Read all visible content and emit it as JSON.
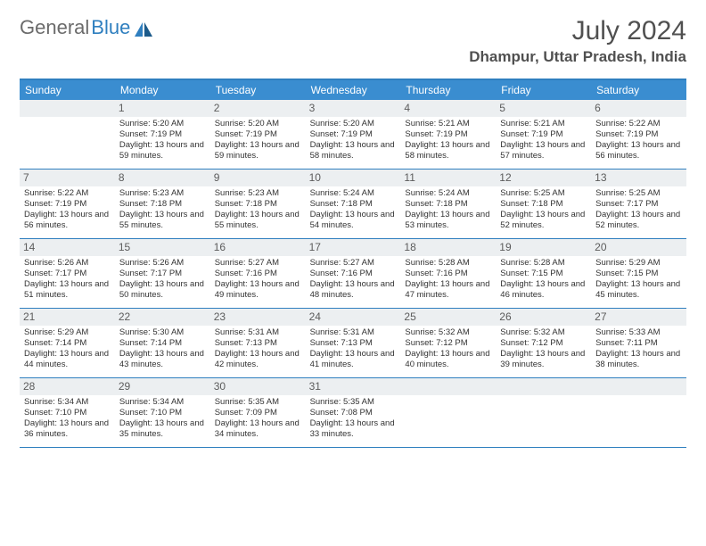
{
  "logo": {
    "part1": "General",
    "part2": "Blue"
  },
  "title": "July 2024",
  "subtitle": "Dhampur, Uttar Pradesh, India",
  "colors": {
    "header_bg": "#3a8dd0",
    "header_text": "#ffffff",
    "border": "#2f7fbf",
    "daynum_bg": "#eceff1",
    "daynum_text": "#5c5c5c",
    "body_text": "#333333",
    "logo_gray": "#6b6b6b",
    "logo_blue": "#2f7fbf"
  },
  "typography": {
    "title_fontsize": 30,
    "subtitle_fontsize": 17,
    "dayheader_fontsize": 12,
    "daynum_fontsize": 12,
    "cell_fontsize": 9.5
  },
  "day_names": [
    "Sunday",
    "Monday",
    "Tuesday",
    "Wednesday",
    "Thursday",
    "Friday",
    "Saturday"
  ],
  "weeks": [
    [
      null,
      {
        "n": "1",
        "sr": "5:20 AM",
        "ss": "7:19 PM",
        "dl": "13 hours and 59 minutes."
      },
      {
        "n": "2",
        "sr": "5:20 AM",
        "ss": "7:19 PM",
        "dl": "13 hours and 59 minutes."
      },
      {
        "n": "3",
        "sr": "5:20 AM",
        "ss": "7:19 PM",
        "dl": "13 hours and 58 minutes."
      },
      {
        "n": "4",
        "sr": "5:21 AM",
        "ss": "7:19 PM",
        "dl": "13 hours and 58 minutes."
      },
      {
        "n": "5",
        "sr": "5:21 AM",
        "ss": "7:19 PM",
        "dl": "13 hours and 57 minutes."
      },
      {
        "n": "6",
        "sr": "5:22 AM",
        "ss": "7:19 PM",
        "dl": "13 hours and 56 minutes."
      }
    ],
    [
      {
        "n": "7",
        "sr": "5:22 AM",
        "ss": "7:19 PM",
        "dl": "13 hours and 56 minutes."
      },
      {
        "n": "8",
        "sr": "5:23 AM",
        "ss": "7:18 PM",
        "dl": "13 hours and 55 minutes."
      },
      {
        "n": "9",
        "sr": "5:23 AM",
        "ss": "7:18 PM",
        "dl": "13 hours and 55 minutes."
      },
      {
        "n": "10",
        "sr": "5:24 AM",
        "ss": "7:18 PM",
        "dl": "13 hours and 54 minutes."
      },
      {
        "n": "11",
        "sr": "5:24 AM",
        "ss": "7:18 PM",
        "dl": "13 hours and 53 minutes."
      },
      {
        "n": "12",
        "sr": "5:25 AM",
        "ss": "7:18 PM",
        "dl": "13 hours and 52 minutes."
      },
      {
        "n": "13",
        "sr": "5:25 AM",
        "ss": "7:17 PM",
        "dl": "13 hours and 52 minutes."
      }
    ],
    [
      {
        "n": "14",
        "sr": "5:26 AM",
        "ss": "7:17 PM",
        "dl": "13 hours and 51 minutes."
      },
      {
        "n": "15",
        "sr": "5:26 AM",
        "ss": "7:17 PM",
        "dl": "13 hours and 50 minutes."
      },
      {
        "n": "16",
        "sr": "5:27 AM",
        "ss": "7:16 PM",
        "dl": "13 hours and 49 minutes."
      },
      {
        "n": "17",
        "sr": "5:27 AM",
        "ss": "7:16 PM",
        "dl": "13 hours and 48 minutes."
      },
      {
        "n": "18",
        "sr": "5:28 AM",
        "ss": "7:16 PM",
        "dl": "13 hours and 47 minutes."
      },
      {
        "n": "19",
        "sr": "5:28 AM",
        "ss": "7:15 PM",
        "dl": "13 hours and 46 minutes."
      },
      {
        "n": "20",
        "sr": "5:29 AM",
        "ss": "7:15 PM",
        "dl": "13 hours and 45 minutes."
      }
    ],
    [
      {
        "n": "21",
        "sr": "5:29 AM",
        "ss": "7:14 PM",
        "dl": "13 hours and 44 minutes."
      },
      {
        "n": "22",
        "sr": "5:30 AM",
        "ss": "7:14 PM",
        "dl": "13 hours and 43 minutes."
      },
      {
        "n": "23",
        "sr": "5:31 AM",
        "ss": "7:13 PM",
        "dl": "13 hours and 42 minutes."
      },
      {
        "n": "24",
        "sr": "5:31 AM",
        "ss": "7:13 PM",
        "dl": "13 hours and 41 minutes."
      },
      {
        "n": "25",
        "sr": "5:32 AM",
        "ss": "7:12 PM",
        "dl": "13 hours and 40 minutes."
      },
      {
        "n": "26",
        "sr": "5:32 AM",
        "ss": "7:12 PM",
        "dl": "13 hours and 39 minutes."
      },
      {
        "n": "27",
        "sr": "5:33 AM",
        "ss": "7:11 PM",
        "dl": "13 hours and 38 minutes."
      }
    ],
    [
      {
        "n": "28",
        "sr": "5:34 AM",
        "ss": "7:10 PM",
        "dl": "13 hours and 36 minutes."
      },
      {
        "n": "29",
        "sr": "5:34 AM",
        "ss": "7:10 PM",
        "dl": "13 hours and 35 minutes."
      },
      {
        "n": "30",
        "sr": "5:35 AM",
        "ss": "7:09 PM",
        "dl": "13 hours and 34 minutes."
      },
      {
        "n": "31",
        "sr": "5:35 AM",
        "ss": "7:08 PM",
        "dl": "13 hours and 33 minutes."
      },
      null,
      null,
      null
    ]
  ],
  "labels": {
    "sunrise": "Sunrise:",
    "sunset": "Sunset:",
    "daylight": "Daylight:"
  }
}
